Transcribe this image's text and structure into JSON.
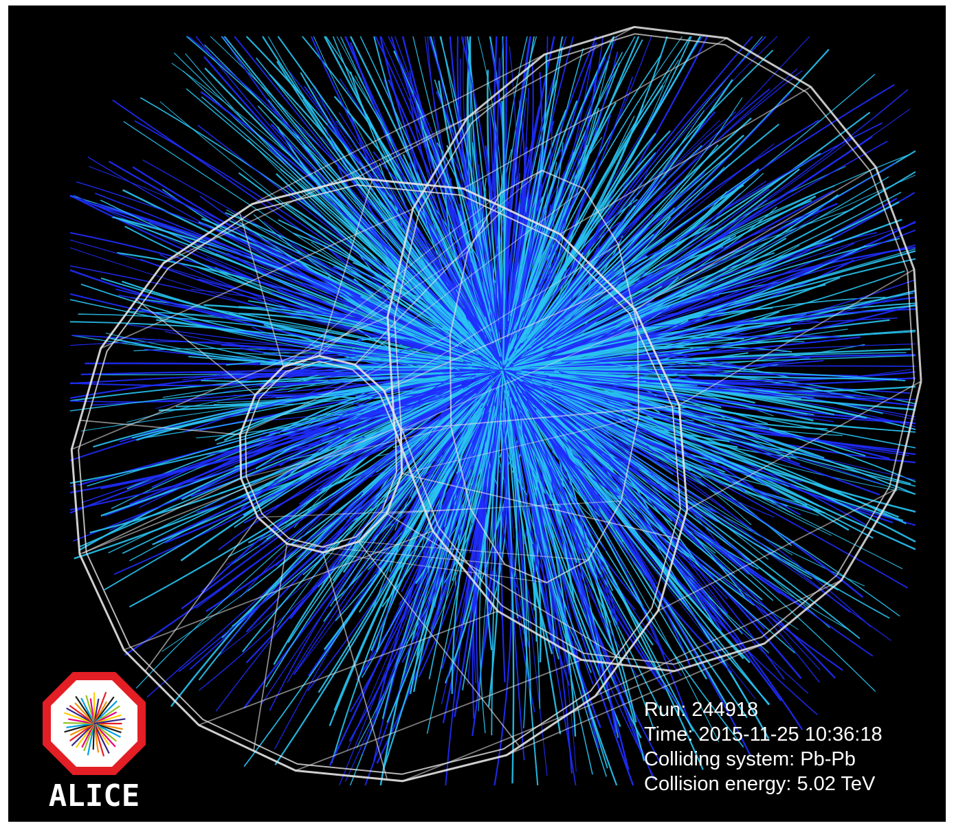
{
  "event_info": {
    "run": "Run: 244918",
    "time": "Time: 2015-11-25 10:36:18",
    "system": "Colliding system: Pb-Pb",
    "energy": "Collision energy: 5.02 TeV"
  },
  "logo": {
    "text": "ALICE",
    "icon": "alice-logo-icon",
    "colors": {
      "octagon": "#e31e24",
      "text": "#ffffff"
    }
  },
  "colors": {
    "background": "#000000",
    "detector_wireframe": "#e6e6e6",
    "track_dark_blue": "#1f2dff",
    "track_light_blue": "#29c4f2"
  }
}
